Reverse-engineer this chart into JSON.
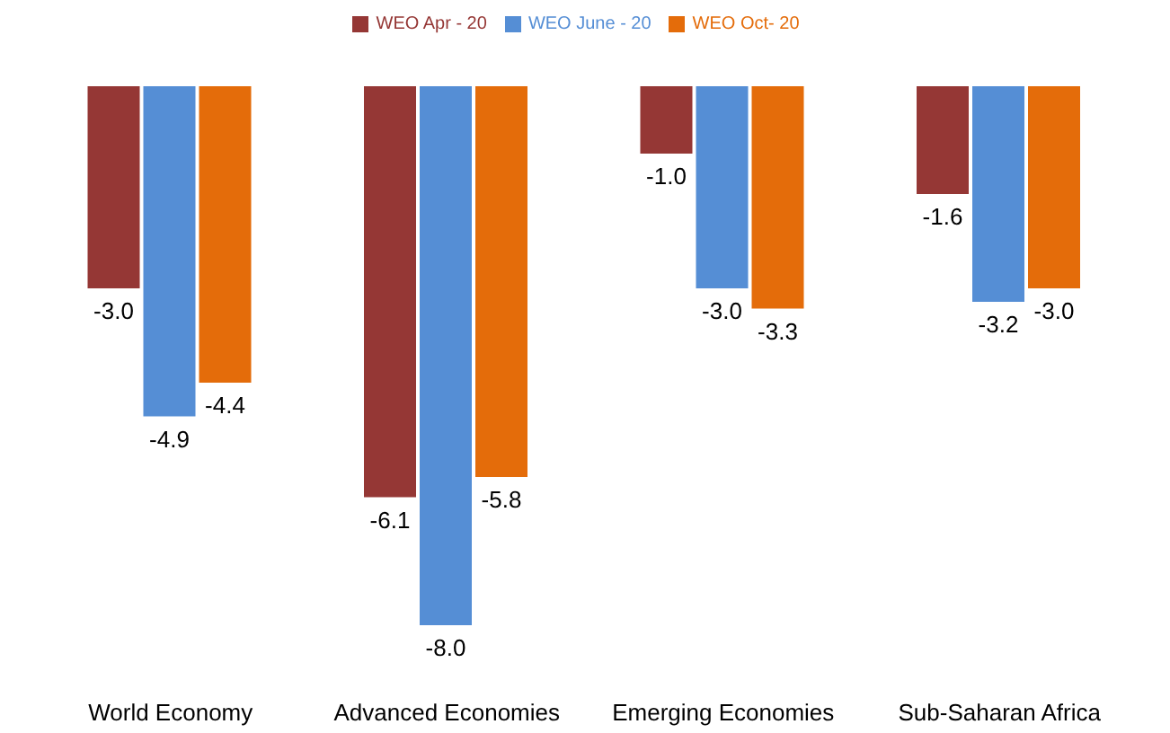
{
  "chart_data": {
    "type": "bar",
    "categories": [
      "World Economy",
      "Advanced Economies",
      "Emerging Economies",
      "Sub-Saharan Africa"
    ],
    "series": [
      {
        "name": "WEO Apr - 20",
        "color": "#953735",
        "values": [
          -3.0,
          -6.1,
          -1.0,
          -1.6
        ],
        "value_labels": [
          "-3.0",
          "-6.1",
          "-1.0",
          "-1.6"
        ]
      },
      {
        "name": "WEO June - 20",
        "color": "#558ed5",
        "values": [
          -4.9,
          -8.0,
          -3.0,
          -3.2
        ],
        "value_labels": [
          "-4.9",
          "-8.0",
          "-3.0",
          "-3.2"
        ]
      },
      {
        "name": "WEO Oct- 20",
        "color": "#e46c0a",
        "values": [
          -4.4,
          -5.8,
          -3.3,
          -3.0
        ],
        "value_labels": [
          "-4.4",
          "-5.8",
          "-3.3",
          "-3.0"
        ]
      }
    ],
    "legend": "top",
    "grid": false,
    "tick_labels": "x"
  }
}
